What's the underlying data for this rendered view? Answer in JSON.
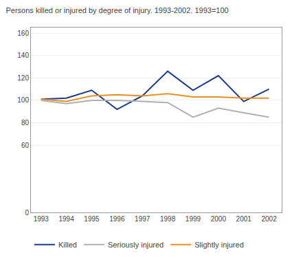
{
  "chart_data": {
    "type": "line",
    "title": "Persons killed or injured by degree of injury. 1993-2002. 1993=100",
    "x": [
      1993,
      1994,
      1995,
      1996,
      1997,
      1998,
      1999,
      2000,
      2001,
      2002
    ],
    "xlim": [
      1992.6,
      2002.5
    ],
    "xticks": [
      1993,
      1994,
      1995,
      1996,
      1997,
      1998,
      1999,
      2000,
      2001,
      2002
    ],
    "ylim": [
      0,
      165
    ],
    "yticks": [
      0,
      60,
      80,
      100,
      120,
      140,
      160
    ],
    "grid": true,
    "legend": "bottom",
    "series": [
      {
        "name": "Killed",
        "color": "#1a3a8a",
        "values": [
          101,
          102,
          109,
          92,
          104,
          126,
          109,
          122,
          99,
          110
        ]
      },
      {
        "name": "Seriously injured",
        "color": "#b0b0b0",
        "values": [
          100,
          97,
          100,
          100,
          99,
          98,
          85,
          93,
          89,
          85
        ]
      },
      {
        "name": "Slightly injured",
        "color": "#e89020",
        "values": [
          101,
          99,
          104,
          105,
          104,
          106,
          103,
          103,
          102,
          102
        ]
      }
    ]
  }
}
